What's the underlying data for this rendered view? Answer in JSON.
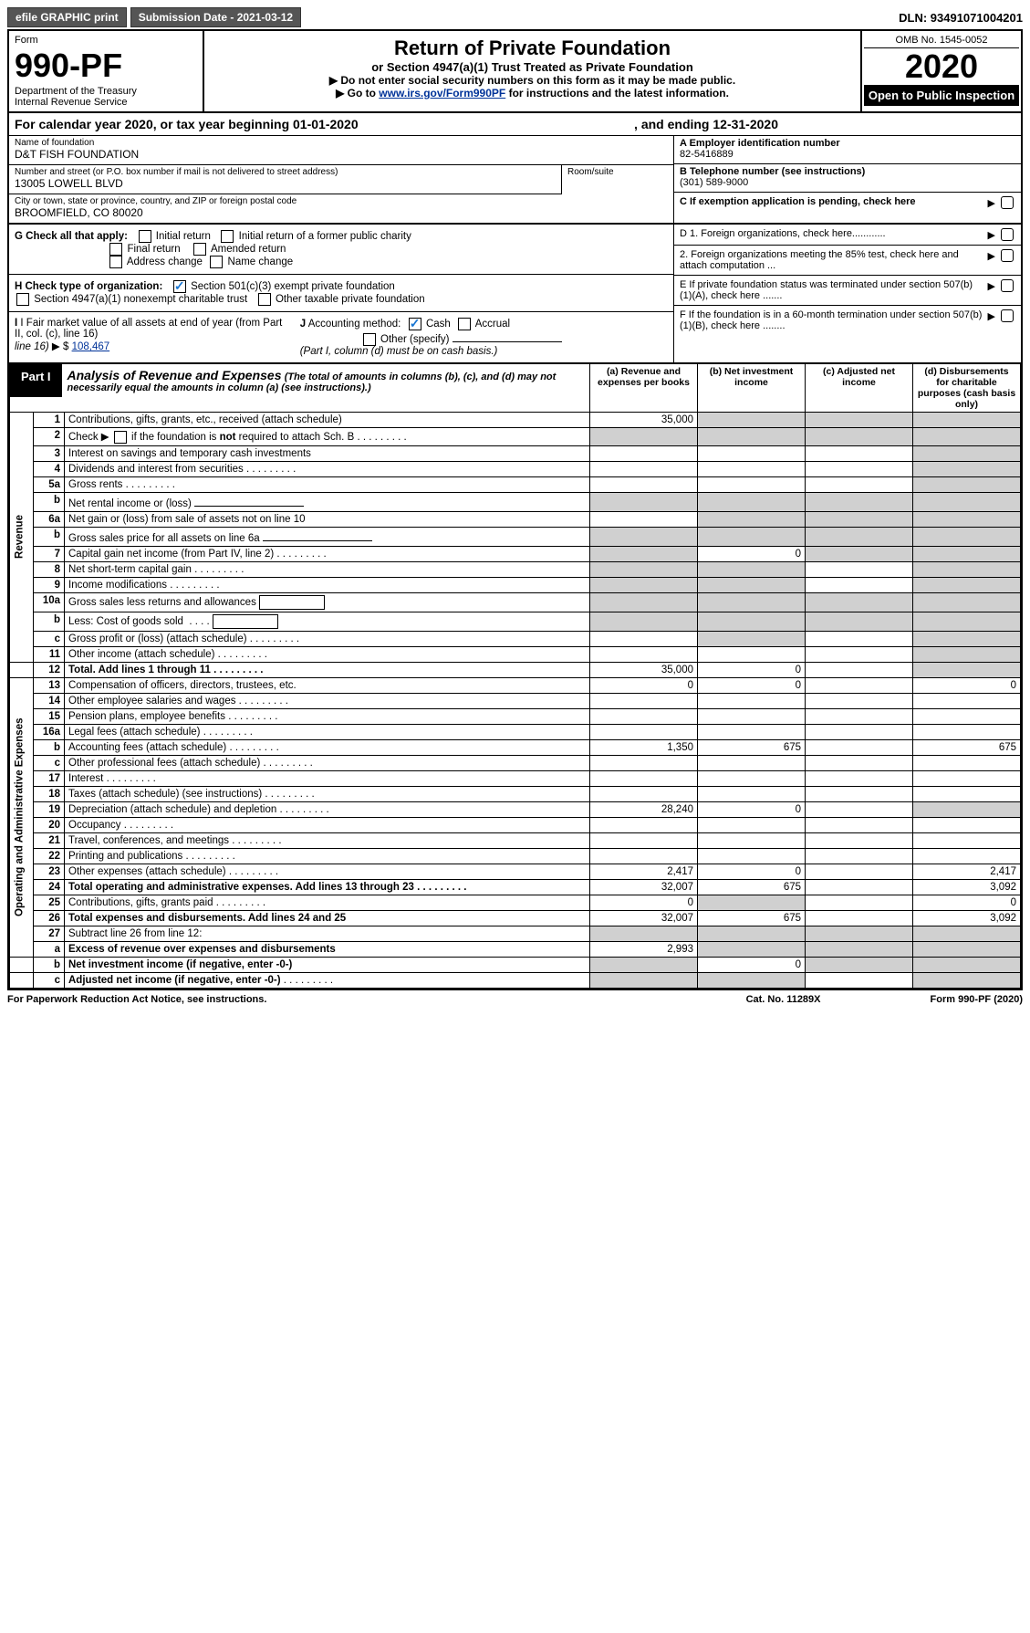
{
  "topBar": {
    "efile": "efile GRAPHIC print",
    "submission": "Submission Date - 2021-03-12",
    "dln": "DLN: 93491071004201"
  },
  "header": {
    "formWord": "Form",
    "formNumber": "990-PF",
    "dept1": "Department of the Treasury",
    "dept2": "Internal Revenue Service",
    "title": "Return of Private Foundation",
    "subtitle": "or Section 4947(a)(1) Trust Treated as Private Foundation",
    "instr1": "▶ Do not enter social security numbers on this form as it may be made public.",
    "instr2": "▶ Go to www.irs.gov/Form990PF for instructions and the latest information.",
    "omb": "OMB No. 1545-0052",
    "year": "2020",
    "openPublic": "Open to Public Inspection"
  },
  "calYear": {
    "text": "For calendar year 2020, or tax year beginning 01-01-2020",
    "ending": ", and ending 12-31-2020"
  },
  "info": {
    "nameLabel": "Name of foundation",
    "name": "D&T FISH FOUNDATION",
    "addrLabel": "Number and street (or P.O. box number if mail is not delivered to street address)",
    "addr": "13005 LOWELL BLVD",
    "roomLabel": "Room/suite",
    "cityLabel": "City or town, state or province, country, and ZIP or foreign postal code",
    "city": "BROOMFIELD, CO  80020",
    "einLabel": "A Employer identification number",
    "ein": "82-5416889",
    "phoneLabel": "B Telephone number (see instructions)",
    "phone": "(301) 589-9000",
    "exemptLabel": "C If exemption application is pending, check here"
  },
  "checkG": {
    "label": "G Check all that apply:",
    "initial": "Initial return",
    "initialFormer": "Initial return of a former public charity",
    "final": "Final return",
    "amended": "Amended return",
    "addrChange": "Address change",
    "nameChange": "Name change"
  },
  "checkH": {
    "label": "H Check type of organization:",
    "s501": "Section 501(c)(3) exempt private foundation",
    "s4947": "Section 4947(a)(1) nonexempt charitable trust",
    "other": "Other taxable private foundation"
  },
  "checkI": {
    "label": "I Fair market value of all assets at end of year (from Part II, col. (c), line 16)",
    "arrow": "▶ $",
    "value": "108,467"
  },
  "checkJ": {
    "label": "J Accounting method:",
    "cash": "Cash",
    "accrual": "Accrual",
    "other": "Other (specify)",
    "note": "(Part I, column (d) must be on cash basis.)"
  },
  "rightD": {
    "d1": "D 1. Foreign organizations, check here............",
    "d2": "2. Foreign organizations meeting the 85% test, check here and attach computation ...",
    "e": "E  If private foundation status was terminated under section 507(b)(1)(A), check here .......",
    "f": "F  If the foundation is in a 60-month termination under section 507(b)(1)(B), check here ........"
  },
  "part1": {
    "label": "Part I",
    "title": "Analysis of Revenue and Expenses",
    "sub": "(The total of amounts in columns (b), (c), and (d) may not necessarily equal the amounts in column (a) (see instructions).)",
    "colA": "(a)  Revenue and expenses per books",
    "colB": "(b)  Net investment income",
    "colC": "(c)  Adjusted net income",
    "colD": "(d)  Disbursements for charitable purposes (cash basis only)"
  },
  "sideRevenue": "Revenue",
  "sideExpenses": "Operating and Administrative Expenses",
  "rows": {
    "r1": {
      "n": "1",
      "d": "Contributions, gifts, grants, etc., received (attach schedule)",
      "a": "35,000"
    },
    "r2": {
      "n": "2",
      "d": "Check ▶    if the foundation is not required to attach Sch. B"
    },
    "r3": {
      "n": "3",
      "d": "Interest on savings and temporary cash investments"
    },
    "r4": {
      "n": "4",
      "d": "Dividends and interest from securities"
    },
    "r5a": {
      "n": "5a",
      "d": "Gross rents"
    },
    "r5b": {
      "n": "b",
      "d": "Net rental income or (loss)"
    },
    "r6a": {
      "n": "6a",
      "d": "Net gain or (loss) from sale of assets not on line 10"
    },
    "r6b": {
      "n": "b",
      "d": "Gross sales price for all assets on line 6a"
    },
    "r7": {
      "n": "7",
      "d": "Capital gain net income (from Part IV, line 2)",
      "b": "0"
    },
    "r8": {
      "n": "8",
      "d": "Net short-term capital gain"
    },
    "r9": {
      "n": "9",
      "d": "Income modifications"
    },
    "r10a": {
      "n": "10a",
      "d": "Gross sales less returns and allowances"
    },
    "r10b": {
      "n": "b",
      "d": "Less: Cost of goods sold"
    },
    "r10c": {
      "n": "c",
      "d": "Gross profit or (loss) (attach schedule)"
    },
    "r11": {
      "n": "11",
      "d": "Other income (attach schedule)"
    },
    "r12": {
      "n": "12",
      "d": "Total. Add lines 1 through 11",
      "a": "35,000",
      "b": "0"
    },
    "r13": {
      "n": "13",
      "d": "Compensation of officers, directors, trustees, etc.",
      "a": "0",
      "b": "0",
      "dd": "0"
    },
    "r14": {
      "n": "14",
      "d": "Other employee salaries and wages"
    },
    "r15": {
      "n": "15",
      "d": "Pension plans, employee benefits"
    },
    "r16a": {
      "n": "16a",
      "d": "Legal fees (attach schedule)"
    },
    "r16b": {
      "n": "b",
      "d": "Accounting fees (attach schedule)",
      "a": "1,350",
      "b": "675",
      "dd": "675"
    },
    "r16c": {
      "n": "c",
      "d": "Other professional fees (attach schedule)"
    },
    "r17": {
      "n": "17",
      "d": "Interest"
    },
    "r18": {
      "n": "18",
      "d": "Taxes (attach schedule) (see instructions)"
    },
    "r19": {
      "n": "19",
      "d": "Depreciation (attach schedule) and depletion",
      "a": "28,240",
      "b": "0"
    },
    "r20": {
      "n": "20",
      "d": "Occupancy"
    },
    "r21": {
      "n": "21",
      "d": "Travel, conferences, and meetings"
    },
    "r22": {
      "n": "22",
      "d": "Printing and publications"
    },
    "r23": {
      "n": "23",
      "d": "Other expenses (attach schedule)",
      "a": "2,417",
      "b": "0",
      "dd": "2,417"
    },
    "r24": {
      "n": "24",
      "d": "Total operating and administrative expenses. Add lines 13 through 23",
      "a": "32,007",
      "b": "675",
      "dd": "3,092"
    },
    "r25": {
      "n": "25",
      "d": "Contributions, gifts, grants paid",
      "a": "0",
      "dd": "0"
    },
    "r26": {
      "n": "26",
      "d": "Total expenses and disbursements. Add lines 24 and 25",
      "a": "32,007",
      "b": "675",
      "dd": "3,092"
    },
    "r27": {
      "n": "27",
      "d": "Subtract line 26 from line 12:"
    },
    "r27a": {
      "n": "a",
      "d": "Excess of revenue over expenses and disbursements",
      "a": "2,993"
    },
    "r27b": {
      "n": "b",
      "d": "Net investment income (if negative, enter -0-)",
      "b": "0"
    },
    "r27c": {
      "n": "c",
      "d": "Adjusted net income (if negative, enter -0-)"
    }
  },
  "footer": {
    "left": "For Paperwork Reduction Act Notice, see instructions.",
    "mid": "Cat. No. 11289X",
    "right": "Form 990-PF (2020)"
  }
}
